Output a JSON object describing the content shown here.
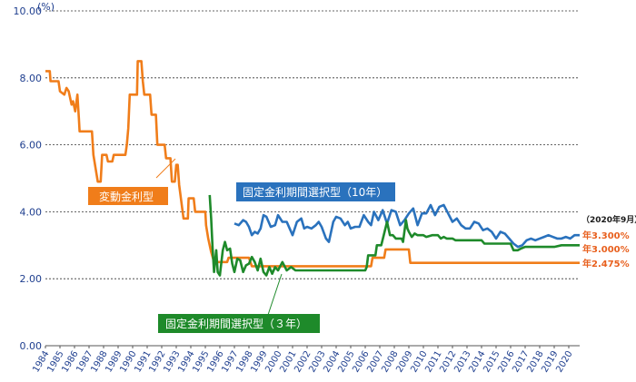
{
  "chart_data": {
    "type": "line",
    "y_unit": "(%)",
    "ylim": [
      0,
      10
    ],
    "yticks": [
      "0.00",
      "2.00",
      "4.00",
      "6.00",
      "8.00",
      "10.00"
    ],
    "xlim": [
      1984,
      2020.75
    ],
    "xticks": [
      "1984",
      "1985",
      "1986",
      "1987",
      "1988",
      "1989",
      "1990",
      "1991",
      "1992",
      "1993",
      "1994",
      "1995",
      "1996",
      "1997",
      "1998",
      "1999",
      "2000",
      "2001",
      "2002",
      "2003",
      "2004",
      "2005",
      "2006",
      "2007",
      "2008",
      "2009",
      "2010",
      "2011",
      "2012",
      "2013",
      "2014",
      "2015",
      "2016",
      "2017",
      "2018",
      "2019",
      "2020"
    ],
    "grid": "horizontal dotted",
    "series": [
      {
        "name": "変動金利型",
        "color": "#f07d1a",
        "points": [
          [
            1984.0,
            8.2
          ],
          [
            1984.3,
            8.2
          ],
          [
            1984.35,
            7.9
          ],
          [
            1984.9,
            7.9
          ],
          [
            1985.0,
            7.6
          ],
          [
            1985.3,
            7.5
          ],
          [
            1985.45,
            7.7
          ],
          [
            1985.6,
            7.6
          ],
          [
            1985.8,
            7.2
          ],
          [
            1985.9,
            7.3
          ],
          [
            1986.05,
            7.0
          ],
          [
            1986.2,
            7.5
          ],
          [
            1986.3,
            6.8
          ],
          [
            1986.35,
            6.4
          ],
          [
            1987.2,
            6.4
          ],
          [
            1987.3,
            5.7
          ],
          [
            1987.45,
            5.3
          ],
          [
            1987.6,
            4.9
          ],
          [
            1987.8,
            4.9
          ],
          [
            1987.9,
            5.7
          ],
          [
            1988.2,
            5.7
          ],
          [
            1988.3,
            5.5
          ],
          [
            1988.6,
            5.5
          ],
          [
            1988.7,
            5.7
          ],
          [
            1989.5,
            5.7
          ],
          [
            1989.6,
            6.0
          ],
          [
            1989.7,
            6.5
          ],
          [
            1989.8,
            7.5
          ],
          [
            1990.3,
            7.5
          ],
          [
            1990.35,
            8.5
          ],
          [
            1990.6,
            8.5
          ],
          [
            1990.7,
            7.9
          ],
          [
            1990.8,
            7.5
          ],
          [
            1991.2,
            7.5
          ],
          [
            1991.3,
            6.9
          ],
          [
            1991.6,
            6.9
          ],
          [
            1991.7,
            6.0
          ],
          [
            1992.2,
            6.0
          ],
          [
            1992.3,
            5.6
          ],
          [
            1992.6,
            5.6
          ],
          [
            1992.7,
            4.9
          ],
          [
            1992.9,
            4.9
          ],
          [
            1993.0,
            5.4
          ],
          [
            1993.1,
            5.4
          ],
          [
            1993.2,
            4.8
          ],
          [
            1993.5,
            3.8
          ],
          [
            1993.8,
            3.8
          ],
          [
            1993.85,
            4.4
          ],
          [
            1994.2,
            4.4
          ],
          [
            1994.3,
            4.0
          ],
          [
            1995.0,
            4.0
          ],
          [
            1995.05,
            3.6
          ],
          [
            1995.2,
            3.2
          ],
          [
            1995.4,
            2.8
          ],
          [
            1995.6,
            2.5
          ],
          [
            1996.5,
            2.5
          ],
          [
            1996.6,
            2.625
          ],
          [
            1998.0,
            2.625
          ],
          [
            1998.2,
            2.375
          ],
          [
            2006.4,
            2.375
          ],
          [
            2006.5,
            2.625
          ],
          [
            2007.3,
            2.625
          ],
          [
            2007.4,
            2.875
          ],
          [
            2009.0,
            2.875
          ],
          [
            2009.1,
            2.475
          ],
          [
            2020.75,
            2.475
          ]
        ]
      },
      {
        "name": "固定金利期間選択型（10年）",
        "color": "#2a72bd",
        "points": [
          [
            1997.0,
            3.65
          ],
          [
            1997.3,
            3.6
          ],
          [
            1997.6,
            3.75
          ],
          [
            1997.8,
            3.7
          ],
          [
            1998.0,
            3.55
          ],
          [
            1998.2,
            3.3
          ],
          [
            1998.4,
            3.4
          ],
          [
            1998.6,
            3.35
          ],
          [
            1998.8,
            3.5
          ],
          [
            1999.0,
            3.9
          ],
          [
            1999.2,
            3.85
          ],
          [
            1999.5,
            3.55
          ],
          [
            1999.8,
            3.6
          ],
          [
            2000.0,
            3.9
          ],
          [
            2000.3,
            3.7
          ],
          [
            2000.6,
            3.7
          ],
          [
            2000.8,
            3.5
          ],
          [
            2001.0,
            3.3
          ],
          [
            2001.3,
            3.7
          ],
          [
            2001.6,
            3.8
          ],
          [
            2001.8,
            3.5
          ],
          [
            2002.0,
            3.55
          ],
          [
            2002.3,
            3.5
          ],
          [
            2002.6,
            3.6
          ],
          [
            2002.8,
            3.7
          ],
          [
            2003.0,
            3.55
          ],
          [
            2003.3,
            3.2
          ],
          [
            2003.5,
            3.1
          ],
          [
            2003.8,
            3.7
          ],
          [
            2004.0,
            3.85
          ],
          [
            2004.3,
            3.8
          ],
          [
            2004.6,
            3.6
          ],
          [
            2004.8,
            3.7
          ],
          [
            2005.0,
            3.5
          ],
          [
            2005.3,
            3.55
          ],
          [
            2005.6,
            3.55
          ],
          [
            2005.9,
            3.9
          ],
          [
            2006.2,
            3.7
          ],
          [
            2006.4,
            3.6
          ],
          [
            2006.6,
            4.0
          ],
          [
            2006.9,
            3.75
          ],
          [
            2007.2,
            4.05
          ],
          [
            2007.5,
            3.65
          ],
          [
            2007.8,
            4.05
          ],
          [
            2008.1,
            4.0
          ],
          [
            2008.4,
            3.6
          ],
          [
            2008.7,
            3.75
          ],
          [
            2009.0,
            3.95
          ],
          [
            2009.3,
            4.1
          ],
          [
            2009.6,
            3.6
          ],
          [
            2009.9,
            3.95
          ],
          [
            2010.2,
            3.95
          ],
          [
            2010.5,
            4.2
          ],
          [
            2010.8,
            3.9
          ],
          [
            2011.1,
            4.15
          ],
          [
            2011.4,
            4.2
          ],
          [
            2011.7,
            3.95
          ],
          [
            2012.0,
            3.7
          ],
          [
            2012.3,
            3.8
          ],
          [
            2012.6,
            3.6
          ],
          [
            2012.9,
            3.5
          ],
          [
            2013.2,
            3.5
          ],
          [
            2013.5,
            3.7
          ],
          [
            2013.8,
            3.65
          ],
          [
            2014.1,
            3.45
          ],
          [
            2014.4,
            3.5
          ],
          [
            2014.7,
            3.4
          ],
          [
            2015.0,
            3.2
          ],
          [
            2015.3,
            3.4
          ],
          [
            2015.6,
            3.35
          ],
          [
            2015.9,
            3.2
          ],
          [
            2016.2,
            3.05
          ],
          [
            2016.5,
            2.95
          ],
          [
            2016.8,
            3.0
          ],
          [
            2017.1,
            3.15
          ],
          [
            2017.4,
            3.2
          ],
          [
            2017.7,
            3.15
          ],
          [
            2018.0,
            3.2
          ],
          [
            2018.3,
            3.25
          ],
          [
            2018.6,
            3.3
          ],
          [
            2018.9,
            3.25
          ],
          [
            2019.2,
            3.2
          ],
          [
            2019.5,
            3.2
          ],
          [
            2019.8,
            3.25
          ],
          [
            2020.1,
            3.2
          ],
          [
            2020.4,
            3.3
          ],
          [
            2020.75,
            3.3
          ]
        ]
      },
      {
        "name": "固定金利期間選択型（３年）",
        "color": "#1e8a2a",
        "points": [
          [
            1995.3,
            4.5
          ],
          [
            1995.4,
            3.8
          ],
          [
            1995.5,
            2.9
          ],
          [
            1995.6,
            2.2
          ],
          [
            1995.75,
            2.85
          ],
          [
            1995.85,
            2.2
          ],
          [
            1996.0,
            2.1
          ],
          [
            1996.2,
            2.85
          ],
          [
            1996.35,
            3.1
          ],
          [
            1996.5,
            2.85
          ],
          [
            1996.7,
            2.9
          ],
          [
            1996.85,
            2.45
          ],
          [
            1997.0,
            2.2
          ],
          [
            1997.2,
            2.6
          ],
          [
            1997.4,
            2.55
          ],
          [
            1997.6,
            2.2
          ],
          [
            1997.8,
            2.4
          ],
          [
            1998.0,
            2.45
          ],
          [
            1998.2,
            2.65
          ],
          [
            1998.4,
            2.5
          ],
          [
            1998.6,
            2.25
          ],
          [
            1998.8,
            2.6
          ],
          [
            1999.0,
            2.2
          ],
          [
            1999.2,
            2.1
          ],
          [
            1999.4,
            2.35
          ],
          [
            1999.6,
            2.15
          ],
          [
            1999.8,
            2.35
          ],
          [
            2000.0,
            2.25
          ],
          [
            2000.3,
            2.5
          ],
          [
            2000.6,
            2.25
          ],
          [
            2000.9,
            2.35
          ],
          [
            2001.2,
            2.25
          ],
          [
            2001.6,
            2.25
          ],
          [
            2002.0,
            2.25
          ],
          [
            2006.0,
            2.25
          ],
          [
            2006.1,
            2.35
          ],
          [
            2006.2,
            2.7
          ],
          [
            2006.7,
            2.7
          ],
          [
            2006.8,
            3.0
          ],
          [
            2007.1,
            3.0
          ],
          [
            2007.3,
            3.35
          ],
          [
            2007.5,
            3.7
          ],
          [
            2007.7,
            3.3
          ],
          [
            2007.9,
            3.3
          ],
          [
            2008.1,
            3.2
          ],
          [
            2008.5,
            3.2
          ],
          [
            2008.6,
            3.1
          ],
          [
            2008.8,
            3.75
          ],
          [
            2008.9,
            3.5
          ],
          [
            2009.0,
            3.4
          ],
          [
            2009.2,
            3.25
          ],
          [
            2009.4,
            3.35
          ],
          [
            2009.6,
            3.3
          ],
          [
            2010.0,
            3.3
          ],
          [
            2010.2,
            3.25
          ],
          [
            2010.6,
            3.3
          ],
          [
            2011.0,
            3.3
          ],
          [
            2011.2,
            3.2
          ],
          [
            2011.4,
            3.25
          ],
          [
            2011.6,
            3.2
          ],
          [
            2012.0,
            3.2
          ],
          [
            2012.2,
            3.15
          ],
          [
            2014.0,
            3.15
          ],
          [
            2014.2,
            3.05
          ],
          [
            2016.0,
            3.05
          ],
          [
            2016.2,
            2.85
          ],
          [
            2016.5,
            2.85
          ],
          [
            2016.7,
            2.9
          ],
          [
            2017.0,
            2.95
          ],
          [
            2019.0,
            2.95
          ],
          [
            2019.5,
            3.0
          ],
          [
            2020.75,
            3.0
          ]
        ]
      }
    ],
    "annotations": [
      {
        "text": "変動金利型",
        "color": "#f07d1a"
      },
      {
        "text": "固定金利期間選択型（10年）",
        "color": "#2a72bd"
      },
      {
        "text": "固定金利期間選択型（３年）",
        "color": "#1e8a2a"
      }
    ],
    "end_values": [
      "年3.300%",
      "年3.000%",
      "年2.475%"
    ],
    "date_note": "（2020年9月）"
  }
}
